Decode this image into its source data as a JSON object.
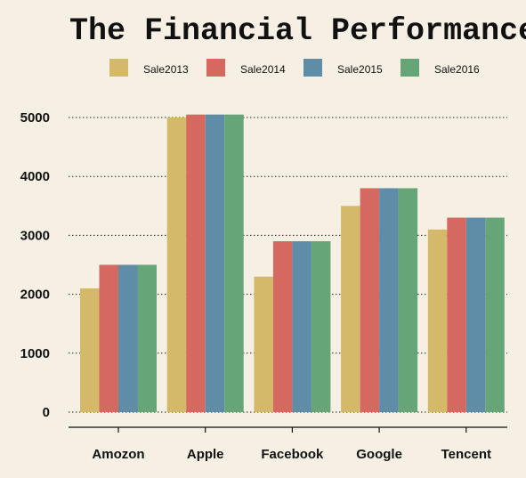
{
  "chart_data": {
    "type": "bar",
    "title": "The Financial Performance",
    "xlabel": "",
    "ylabel": "",
    "categories": [
      "Amozon",
      "Apple",
      "Facebook",
      "Google",
      "Tencent"
    ],
    "series": [
      {
        "name": "Sale2013",
        "color": "#d4b96a",
        "values": [
          2100,
          5000,
          2300,
          3500,
          3100
        ]
      },
      {
        "name": "Sale2014",
        "color": "#d5695f",
        "values": [
          2500,
          5050,
          2900,
          3800,
          3300
        ]
      },
      {
        "name": "Sale2015",
        "color": "#5f8ca7",
        "values": [
          2500,
          5050,
          2900,
          3800,
          3300
        ]
      },
      {
        "name": "Sale2016",
        "color": "#66a577",
        "values": [
          2500,
          5050,
          2900,
          3800,
          3300
        ]
      }
    ],
    "ylim": [
      0,
      5000
    ],
    "yticks": [
      0,
      1000,
      2000,
      3000,
      4000,
      5000
    ],
    "grid": "horizontal-dotted",
    "legend_position": "top"
  }
}
